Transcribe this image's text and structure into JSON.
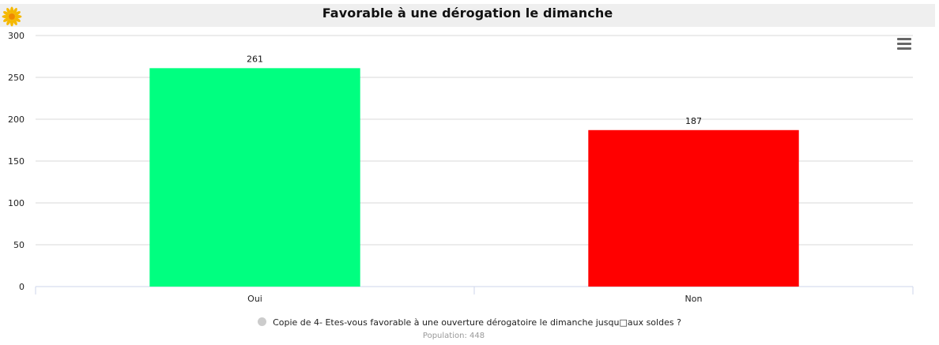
{
  "title": "Favorable à une dérogation le dimanche",
  "legend": {
    "label": "Copie de 4- Etes-vous favorable à une ouverture dérogatoire le dimanche jusqu□aux soldes ?"
  },
  "population": "Population: 448",
  "icons": {
    "logo": "sun-logo-icon",
    "menu": "hamburger-menu-icon"
  },
  "colors": {
    "oui": "#00ff80",
    "non": "#ff0000",
    "grid": "#d8d8d8",
    "legend_dot": "#cccccc"
  },
  "chart_data": {
    "type": "bar",
    "title": "Favorable à une dérogation le dimanche",
    "categories": [
      "Oui",
      "Non"
    ],
    "series": [
      {
        "name": "Copie de 4- Etes-vous favorable à une ouverture dérogatoire le dimanche jusqu□aux soldes ?",
        "values": [
          261,
          187
        ]
      }
    ],
    "bar_colors": [
      "#00ff80",
      "#ff0000"
    ],
    "data_labels": [
      "261",
      "187"
    ],
    "y_ticks": [
      0,
      50,
      100,
      150,
      200,
      250,
      300
    ],
    "ylim": [
      0,
      300
    ],
    "grid": true,
    "legend_position": "bottom-center"
  }
}
